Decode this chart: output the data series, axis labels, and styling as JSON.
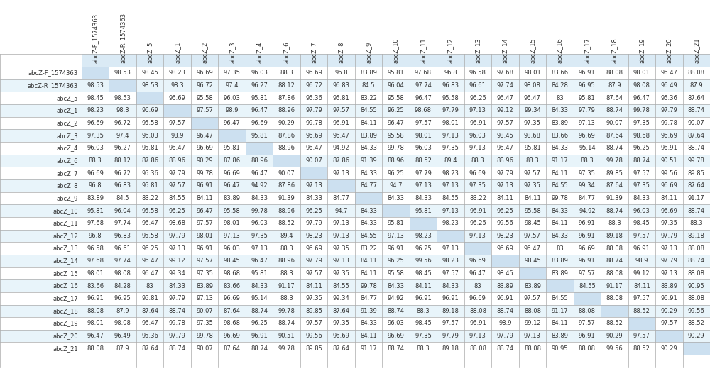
{
  "row_labels": [
    "abcZ-F_1574363",
    "abcZ-R_1574363",
    "abcZ_5",
    "abcZ_1",
    "abcZ_2",
    "abcZ_3",
    "abcZ_4",
    "abcZ_6",
    "abcZ_7",
    "abcZ_8",
    "abcZ_9",
    "abcZ_10",
    "abcZ_11",
    "abcZ_12",
    "abcZ_13",
    "abcZ_14",
    "abcZ_15",
    "abcZ_16",
    "abcZ_17",
    "abcZ_18",
    "abcZ_19",
    "abcZ_20",
    "abcZ_21"
  ],
  "col_labels": [
    "abcZ-F_1574363",
    "abcZ-R_1574363",
    "abcZ_5",
    "abcZ_1",
    "abcZ_2",
    "abcZ_3",
    "abcZ_4",
    "abcZ_6",
    "abcZ_7",
    "abcZ_8",
    "abcZ_9",
    "abcZ_10",
    "abcZ_11",
    "abcZ_12",
    "abcZ_13",
    "abcZ_14",
    "abcZ_15",
    "abcZ_16",
    "abcZ_17",
    "abcZ_18",
    "abcZ_19",
    "abcZ_20",
    "abcZ_21"
  ],
  "matrix": [
    [
      "",
      "98.53",
      "98.45",
      "98.23",
      "96.69",
      "97.35",
      "96.03",
      "88.3",
      "96.69",
      "96.8",
      "83.89",
      "95.81",
      "97.68",
      "96.8",
      "96.58",
      "97.68",
      "98.01",
      "83.66",
      "96.91",
      "88.08",
      "98.01",
      "96.47",
      "88.08"
    ],
    [
      "98.53",
      "",
      "98.53",
      "98.3",
      "96.72",
      "97.4",
      "96.27",
      "88.12",
      "96.72",
      "96.83",
      "84.5",
      "96.04",
      "97.74",
      "96.83",
      "96.61",
      "97.74",
      "98.08",
      "84.28",
      "96.95",
      "87.9",
      "98.08",
      "96.49",
      "87.9"
    ],
    [
      "98.45",
      "98.53",
      "",
      "96.69",
      "95.58",
      "96.03",
      "95.81",
      "87.86",
      "95.36",
      "95.81",
      "83.22",
      "95.58",
      "96.47",
      "95.58",
      "96.25",
      "96.47",
      "96.47",
      "83",
      "95.81",
      "87.64",
      "96.47",
      "95.36",
      "87.64"
    ],
    [
      "98.23",
      "98.3",
      "96.69",
      "",
      "97.57",
      "98.9",
      "96.47",
      "88.96",
      "97.79",
      "97.57",
      "84.55",
      "96.25",
      "98.68",
      "97.79",
      "97.13",
      "99.12",
      "99.34",
      "84.33",
      "97.79",
      "88.74",
      "99.78",
      "97.79",
      "88.74"
    ],
    [
      "96.69",
      "96.72",
      "95.58",
      "97.57",
      "",
      "96.47",
      "96.69",
      "90.29",
      "99.78",
      "96.91",
      "84.11",
      "96.47",
      "97.57",
      "98.01",
      "96.91",
      "97.57",
      "97.35",
      "83.89",
      "97.13",
      "90.07",
      "97.35",
      "99.78",
      "90.07"
    ],
    [
      "97.35",
      "97.4",
      "96.03",
      "98.9",
      "96.47",
      "",
      "95.81",
      "87.86",
      "96.69",
      "96.47",
      "83.89",
      "95.58",
      "98.01",
      "97.13",
      "96.03",
      "98.45",
      "98.68",
      "83.66",
      "96.69",
      "87.64",
      "98.68",
      "96.69",
      "87.64"
    ],
    [
      "96.03",
      "96.27",
      "95.81",
      "96.47",
      "96.69",
      "95.81",
      "",
      "88.96",
      "96.47",
      "94.92",
      "84.33",
      "99.78",
      "96.03",
      "97.35",
      "97.13",
      "96.47",
      "95.81",
      "84.33",
      "95.14",
      "88.74",
      "96.25",
      "96.91",
      "88.74"
    ],
    [
      "88.3",
      "88.12",
      "87.86",
      "88.96",
      "90.29",
      "87.86",
      "88.96",
      "",
      "90.07",
      "87.86",
      "91.39",
      "88.96",
      "88.52",
      "89.4",
      "88.3",
      "88.96",
      "88.3",
      "91.17",
      "88.3",
      "99.78",
      "88.74",
      "90.51",
      "99.78"
    ],
    [
      "96.69",
      "96.72",
      "95.36",
      "97.79",
      "99.78",
      "96.69",
      "96.47",
      "90.07",
      "",
      "97.13",
      "84.33",
      "96.25",
      "97.79",
      "98.23",
      "96.69",
      "97.79",
      "97.57",
      "84.11",
      "97.35",
      "89.85",
      "97.57",
      "99.56",
      "89.85"
    ],
    [
      "96.8",
      "96.83",
      "95.81",
      "97.57",
      "96.91",
      "96.47",
      "94.92",
      "87.86",
      "97.13",
      "",
      "84.77",
      "94.7",
      "97.13",
      "97.13",
      "97.35",
      "97.13",
      "97.35",
      "84.55",
      "99.34",
      "87.64",
      "97.35",
      "96.69",
      "87.64"
    ],
    [
      "83.89",
      "84.5",
      "83.22",
      "84.55",
      "84.11",
      "83.89",
      "84.33",
      "91.39",
      "84.33",
      "84.77",
      "",
      "84.33",
      "84.33",
      "84.55",
      "83.22",
      "84.11",
      "84.11",
      "99.78",
      "84.77",
      "91.39",
      "84.33",
      "84.11",
      "91.17"
    ],
    [
      "95.81",
      "96.04",
      "95.58",
      "96.25",
      "96.47",
      "95.58",
      "99.78",
      "88.96",
      "96.25",
      "94.7",
      "84.33",
      "",
      "95.81",
      "97.13",
      "96.91",
      "96.25",
      "95.58",
      "84.33",
      "94.92",
      "88.74",
      "96.03",
      "96.69",
      "88.74"
    ],
    [
      "97.68",
      "97.74",
      "96.47",
      "98.68",
      "97.57",
      "98.01",
      "96.03",
      "88.52",
      "97.79",
      "97.13",
      "84.33",
      "95.81",
      "",
      "98.23",
      "96.25",
      "99.56",
      "98.45",
      "84.11",
      "96.91",
      "88.3",
      "98.45",
      "97.35",
      "88.3"
    ],
    [
      "96.8",
      "96.83",
      "95.58",
      "97.79",
      "98.01",
      "97.13",
      "97.35",
      "89.4",
      "98.23",
      "97.13",
      "84.55",
      "97.13",
      "98.23",
      "",
      "97.13",
      "98.23",
      "97.57",
      "84.33",
      "96.91",
      "89.18",
      "97.57",
      "97.79",
      "89.18"
    ],
    [
      "96.58",
      "96.61",
      "96.25",
      "97.13",
      "96.91",
      "96.03",
      "97.13",
      "88.3",
      "96.69",
      "97.35",
      "83.22",
      "96.91",
      "96.25",
      "97.13",
      "",
      "96.69",
      "96.47",
      "83",
      "96.69",
      "88.08",
      "96.91",
      "97.13",
      "88.08"
    ],
    [
      "97.68",
      "97.74",
      "96.47",
      "99.12",
      "97.57",
      "98.45",
      "96.47",
      "88.96",
      "97.79",
      "97.13",
      "84.11",
      "96.25",
      "99.56",
      "98.23",
      "96.69",
      "",
      "98.45",
      "83.89",
      "96.91",
      "88.74",
      "98.9",
      "97.79",
      "88.74"
    ],
    [
      "98.01",
      "98.08",
      "96.47",
      "99.34",
      "97.35",
      "98.68",
      "95.81",
      "88.3",
      "97.57",
      "97.35",
      "84.11",
      "95.58",
      "98.45",
      "97.57",
      "96.47",
      "98.45",
      "",
      "83.89",
      "97.57",
      "88.08",
      "99.12",
      "97.13",
      "88.08"
    ],
    [
      "83.66",
      "84.28",
      "83",
      "84.33",
      "83.89",
      "83.66",
      "84.33",
      "91.17",
      "84.11",
      "84.55",
      "99.78",
      "84.33",
      "84.11",
      "84.33",
      "83",
      "83.89",
      "83.89",
      "",
      "84.55",
      "91.17",
      "84.11",
      "83.89",
      "90.95"
    ],
    [
      "96.91",
      "96.95",
      "95.81",
      "97.79",
      "97.13",
      "96.69",
      "95.14",
      "88.3",
      "97.35",
      "99.34",
      "84.77",
      "94.92",
      "96.91",
      "96.91",
      "96.69",
      "96.91",
      "97.57",
      "84.55",
      "",
      "88.08",
      "97.57",
      "96.91",
      "88.08"
    ],
    [
      "88.08",
      "87.9",
      "87.64",
      "88.74",
      "90.07",
      "87.64",
      "88.74",
      "99.78",
      "89.85",
      "87.64",
      "91.39",
      "88.74",
      "88.3",
      "89.18",
      "88.08",
      "88.74",
      "88.08",
      "91.17",
      "88.08",
      "",
      "88.52",
      "90.29",
      "99.56"
    ],
    [
      "98.01",
      "98.08",
      "96.47",
      "99.78",
      "97.35",
      "98.68",
      "96.25",
      "88.74",
      "97.57",
      "97.35",
      "84.33",
      "96.03",
      "98.45",
      "97.57",
      "96.91",
      "98.9",
      "99.12",
      "84.11",
      "97.57",
      "88.52",
      "",
      "97.57",
      "88.52"
    ],
    [
      "96.47",
      "96.49",
      "95.36",
      "97.79",
      "99.78",
      "96.69",
      "96.91",
      "90.51",
      "99.56",
      "96.69",
      "84.11",
      "96.69",
      "97.35",
      "97.79",
      "97.13",
      "97.79",
      "97.13",
      "83.89",
      "96.91",
      "90.29",
      "97.57",
      "",
      "90.29"
    ],
    [
      "88.08",
      "87.9",
      "87.64",
      "88.74",
      "90.07",
      "87.64",
      "88.74",
      "99.78",
      "89.85",
      "87.64",
      "91.17",
      "88.74",
      "88.3",
      "89.18",
      "88.08",
      "88.74",
      "88.08",
      "90.95",
      "88.08",
      "99.56",
      "88.52",
      "90.29",
      ""
    ]
  ],
  "diagonal_color": "#cce0f0",
  "alt_row_color": "#e8f4fa",
  "normal_row_color": "#ffffff",
  "header_bg_color": "#daeaf5",
  "text_color": "#333333",
  "border_color": "#aaaaaa",
  "font_size": 6.0,
  "header_font_size": 6.0
}
